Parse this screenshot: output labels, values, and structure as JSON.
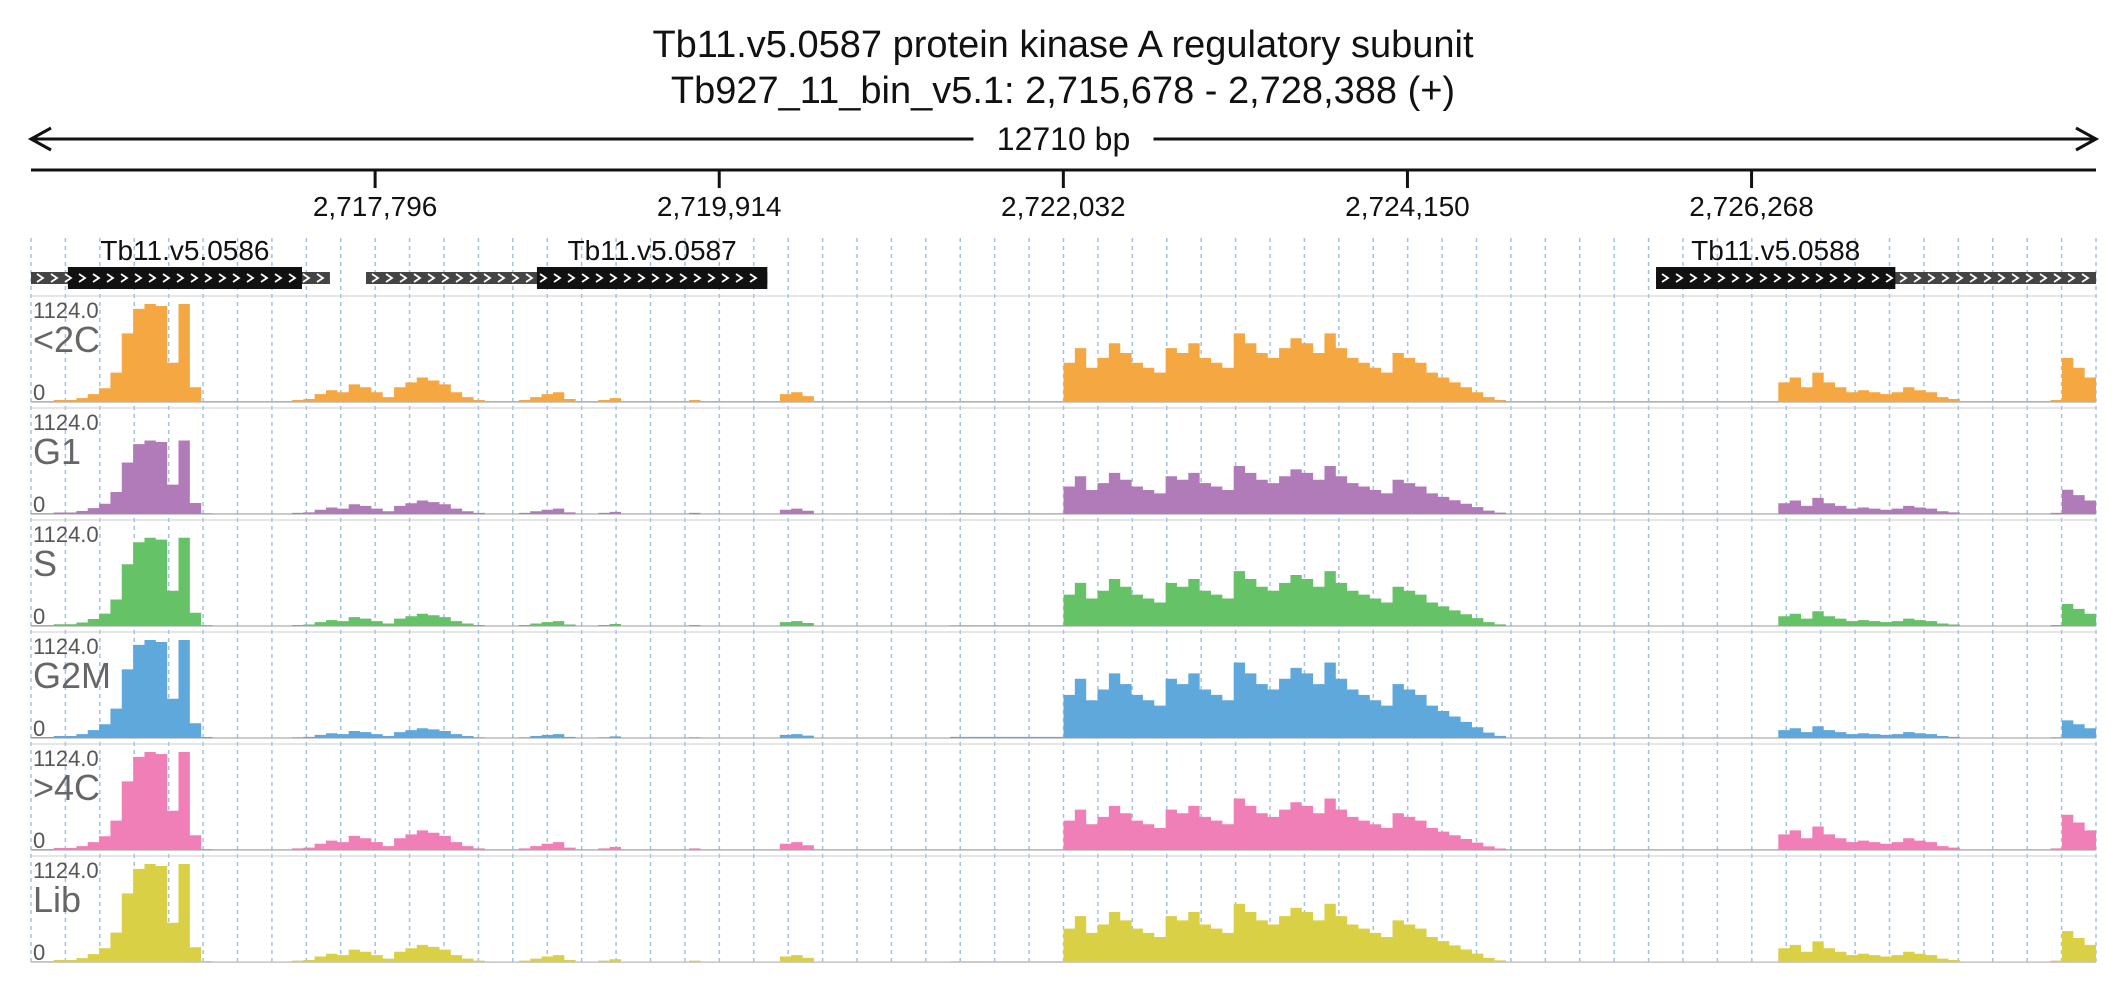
{
  "title_line1": "Tb11.v5.0587  protein kinase A regulatory subunit",
  "title_line2": "Tb927_11_bin_v5.1: 2,715,678 - 2,728,388 (+)",
  "span_label": "12710 bp",
  "chart_data": {
    "type": "area",
    "chromosome": "Tb927_11_bin_v5.1",
    "region_start": 2715678,
    "region_end": 2728388,
    "strand": "+",
    "ticks": [
      {
        "pos": 2717796,
        "label": "2,717,796"
      },
      {
        "pos": 2719914,
        "label": "2,719,914"
      },
      {
        "pos": 2722032,
        "label": "2,722,032"
      },
      {
        "pos": 2724150,
        "label": "2,724,150"
      },
      {
        "pos": 2726268,
        "label": "2,726,268"
      }
    ],
    "genes": [
      {
        "name": "Tb11.v5.0586",
        "start": 2715678,
        "end": 2717518,
        "cds_start": 2715905,
        "cds_end": 2717346
      },
      {
        "name": "Tb11.v5.0587",
        "start": 2717740,
        "end": 2720210,
        "cds_start": 2718792,
        "cds_end": 2720283
      },
      {
        "name": "Tb11.v5.0588",
        "start": 2725680,
        "end": 2728388,
        "cds_start": 2725680,
        "cds_end": 2727153
      }
    ],
    "y_max": 1124.0,
    "y_min": 0,
    "y_max_label": "1124.0",
    "y_min_label": "0",
    "tracks": [
      {
        "name": "<2C",
        "color": "#F5A742"
      },
      {
        "name": "G1",
        "color": "#B07BB8"
      },
      {
        "name": "S",
        "color": "#66C266"
      },
      {
        "name": "G2M",
        "color": "#5FA8DC"
      },
      {
        "name": ">4C",
        "color": "#F07FB8"
      },
      {
        "name": "Lib",
        "color": "#DAD045"
      }
    ],
    "coverage_profile": {
      "bin_size_bp": 127.1,
      "shape": [
        0.01,
        0.01,
        0.02,
        0.02,
        0.04,
        0.08,
        0.14,
        0.3,
        0.7,
        0.95,
        1.0,
        0.98,
        0.4,
        1.0,
        0.15,
        0.01,
        0.01,
        0.01,
        0.01,
        0.01,
        0.01,
        0.01,
        0.01,
        0.02,
        0.03,
        0.08,
        0.12,
        0.1,
        0.18,
        0.15,
        0.1,
        0.05,
        0.15,
        0.2,
        0.25,
        0.22,
        0.18,
        0.1,
        0.05,
        0.02,
        0.01,
        0.01,
        0.01,
        0.02,
        0.05,
        0.08,
        0.1,
        0.03,
        0.01,
        0.01,
        0.02,
        0.04,
        0.01,
        0.01,
        0.01,
        0.01,
        0.01,
        0.01,
        0.02,
        0.01,
        0.01,
        0.01,
        0.01,
        0.01,
        0.01,
        0.01,
        0.08,
        0.1,
        0.06,
        0.01,
        0.01,
        0.01,
        0.01,
        0.01,
        0.01,
        0.01,
        0.01,
        0.01,
        0.01,
        0.01,
        0.01,
        0.01,
        0.01,
        0.01,
        0.01,
        0.01,
        0.01,
        0.01,
        0.01,
        0.01,
        0.01,
        0.4,
        0.55,
        0.35,
        0.45,
        0.6,
        0.5,
        0.4,
        0.35,
        0.3,
        0.55,
        0.5,
        0.6,
        0.45,
        0.4,
        0.35,
        0.7,
        0.6,
        0.5,
        0.45,
        0.55,
        0.65,
        0.6,
        0.5,
        0.7,
        0.55,
        0.45,
        0.4,
        0.35,
        0.3,
        0.5,
        0.45,
        0.4,
        0.3,
        0.25,
        0.2,
        0.15,
        0.1,
        0.05,
        0.02,
        0.01,
        0.01,
        0.01,
        0.01,
        0.01,
        0.01,
        0.01,
        0.01,
        0.01,
        0.01,
        0.01,
        0.01,
        0.01,
        0.01,
        0.01,
        0.01,
        0.01,
        0.01,
        0.01,
        0.01,
        0.01,
        0.01,
        0.01,
        0.01,
        0.2,
        0.25,
        0.15,
        0.3,
        0.2,
        0.15,
        0.1,
        0.12,
        0.1,
        0.08,
        0.1,
        0.15,
        0.12,
        0.1,
        0.05,
        0.03,
        0.01,
        0.01,
        0.01,
        0.01,
        0.01,
        0.01,
        0.01,
        0.01,
        0.02,
        0.45,
        0.35,
        0.25
      ]
    }
  }
}
